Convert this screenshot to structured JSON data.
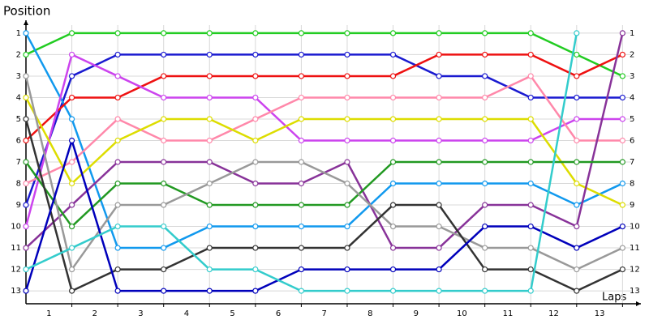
{
  "chart_data": {
    "type": "line",
    "title": "Position",
    "x_label": "Laps",
    "x": [
      0,
      1,
      2,
      3,
      4,
      5,
      6,
      7,
      8,
      9,
      10,
      11,
      12,
      13
    ],
    "xlim": [
      0,
      13.4
    ],
    "xticks": [
      1,
      2,
      3,
      4,
      5,
      6,
      7,
      8,
      9,
      10,
      11,
      12,
      13
    ],
    "ylim": [
      13.6,
      0.4
    ],
    "yticks": [
      1,
      2,
      3,
      4,
      5,
      6,
      7,
      8,
      9,
      10,
      11,
      12,
      13
    ],
    "grid": true,
    "series": [
      {
        "color": "#22cc22",
        "values": [
          2,
          1,
          1,
          1,
          1,
          1,
          1,
          1,
          1,
          1,
          1,
          1,
          2,
          3
        ]
      },
      {
        "color": "#1a1ad0",
        "values": [
          9,
          3,
          2,
          2,
          2,
          2,
          2,
          2,
          2,
          3,
          3,
          4,
          4,
          4
        ]
      },
      {
        "color": "#1199ee",
        "values": [
          1,
          5,
          11,
          11,
          10,
          10,
          10,
          10,
          8,
          8,
          8,
          8,
          9,
          8
        ]
      },
      {
        "color": "#ee1111",
        "values": [
          6,
          4,
          4,
          3,
          3,
          3,
          3,
          3,
          3,
          2,
          2,
          2,
          3,
          2
        ]
      },
      {
        "color": "#cc44ee",
        "values": [
          10,
          2,
          3,
          4,
          4,
          4,
          6,
          6,
          6,
          6,
          6,
          6,
          5,
          5
        ]
      },
      {
        "color": "#ff88aa",
        "values": [
          8,
          7,
          5,
          6,
          6,
          5,
          4,
          4,
          4,
          4,
          4,
          3,
          6,
          6
        ]
      },
      {
        "color": "#dddd00",
        "values": [
          4,
          8,
          6,
          5,
          5,
          6,
          5,
          5,
          5,
          5,
          5,
          5,
          8,
          9
        ]
      },
      {
        "color": "#883399",
        "values": [
          11,
          9,
          7,
          7,
          7,
          8,
          8,
          7,
          11,
          11,
          9,
          9,
          10,
          1
        ]
      },
      {
        "color": "#229922",
        "values": [
          7,
          10,
          8,
          8,
          9,
          9,
          9,
          9,
          7,
          7,
          7,
          7,
          7,
          7
        ]
      },
      {
        "color": "#999999",
        "values": [
          3,
          12,
          9,
          9,
          8,
          7,
          7,
          8,
          10,
          10,
          11,
          11,
          12,
          11
        ]
      },
      {
        "color": "#333333",
        "values": [
          5,
          13,
          12,
          12,
          11,
          11,
          11,
          11,
          9,
          9,
          12,
          12,
          13,
          12
        ]
      },
      {
        "color": "#0000bb",
        "values": [
          13,
          6,
          13,
          13,
          13,
          13,
          12,
          12,
          12,
          12,
          10,
          10,
          11,
          10
        ]
      },
      {
        "color": "#33cccc",
        "values": [
          12,
          11,
          10,
          10,
          12,
          12,
          13,
          13,
          13,
          13,
          13,
          13,
          1,
          null
        ]
      }
    ]
  }
}
